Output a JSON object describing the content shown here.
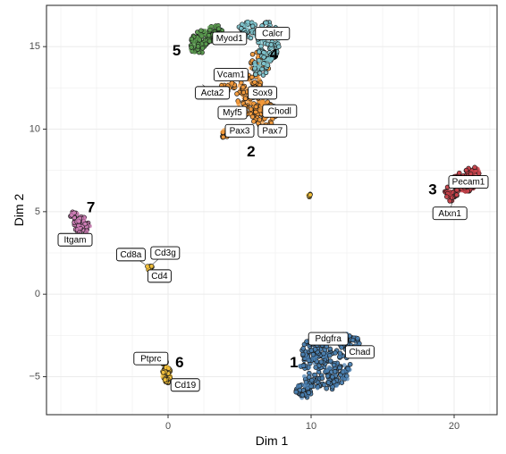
{
  "chart_data": {
    "type": "scatter",
    "xlabel": "Dim 1",
    "ylabel": "Dim 2",
    "xlim": [
      -8.5,
      23
    ],
    "ylim": [
      -7.3,
      17.5
    ],
    "x_ticks": [
      0,
      10,
      20
    ],
    "y_ticks": [
      -5,
      0,
      5,
      10,
      15
    ],
    "grid": true,
    "clusters": [
      {
        "id": "1",
        "color": "#4a7fb0",
        "label_at": [
          8.8,
          -4.2
        ],
        "blobs": [
          [
            11.0,
            -4.5,
            1.8,
            1.3,
            200
          ],
          [
            10.2,
            -3.4,
            1.0,
            0.7,
            60
          ],
          [
            12.5,
            -2.9,
            0.9,
            0.5,
            45
          ],
          [
            9.5,
            -5.8,
            0.6,
            0.5,
            40
          ]
        ]
      },
      {
        "id": "2",
        "color": "#f39a3a",
        "label_at": [
          5.8,
          8.6
        ],
        "blobs": [
          [
            5.8,
            12.0,
            1.0,
            1.3,
            120
          ],
          [
            6.8,
            10.8,
            0.9,
            0.9,
            70
          ],
          [
            4.2,
            12.6,
            0.5,
            0.3,
            18
          ],
          [
            4.0,
            9.7,
            0.3,
            0.25,
            12
          ],
          [
            6.4,
            14.0,
            0.7,
            0.8,
            35
          ]
        ]
      },
      {
        "id": "3",
        "color": "#c8414a",
        "label_at": [
          18.5,
          6.3
        ],
        "blobs": [
          [
            20.7,
            6.8,
            0.9,
            0.6,
            110
          ],
          [
            21.3,
            7.4,
            0.5,
            0.3,
            30
          ],
          [
            19.8,
            6.1,
            0.5,
            0.5,
            35
          ]
        ]
      },
      {
        "id": "4",
        "color": "#7ec3cc",
        "label_at": [
          7.4,
          14.5
        ],
        "blobs": [
          [
            7.0,
            15.3,
            0.8,
            1.2,
            110
          ],
          [
            5.6,
            16.0,
            0.7,
            0.5,
            50
          ],
          [
            6.5,
            13.7,
            0.6,
            0.5,
            30
          ],
          [
            3.5,
            15.8,
            0.4,
            0.3,
            15
          ]
        ]
      },
      {
        "id": "5",
        "color": "#5a9a4e",
        "label_at": [
          0.6,
          14.7
        ],
        "blobs": [
          [
            2.5,
            15.5,
            0.9,
            0.5,
            70
          ],
          [
            3.3,
            15.9,
            0.6,
            0.4,
            30
          ],
          [
            2.0,
            14.9,
            0.5,
            0.4,
            25
          ]
        ]
      },
      {
        "id": "6",
        "color": "#f3c13a",
        "label_at": [
          0.8,
          -4.2
        ],
        "blobs": [
          [
            -0.1,
            -4.9,
            0.3,
            0.5,
            75
          ],
          [
            -0.3,
            -4.1,
            0.2,
            0.2,
            15
          ]
        ]
      },
      {
        "id": "7",
        "color": "#cf7eb6",
        "label_at": [
          -5.4,
          5.2
        ],
        "blobs": [
          [
            -6.0,
            4.2,
            0.6,
            0.5,
            60
          ],
          [
            -6.6,
            4.8,
            0.3,
            0.2,
            15
          ]
        ]
      },
      {
        "id": "",
        "color": "#f3c13a",
        "label_at": null,
        "blobs": [
          [
            -1.3,
            1.6,
            0.2,
            0.15,
            14
          ],
          [
            9.9,
            6.0,
            0.12,
            0.15,
            5
          ]
        ]
      }
    ],
    "gene_labels": [
      {
        "text": "Myod1",
        "anchor": [
          3.0,
          15.2
        ],
        "x": 4.3,
        "y": 15.5
      },
      {
        "text": "Calcr",
        "anchor": [
          6.5,
          15.6
        ],
        "x": 7.3,
        "y": 15.8
      },
      {
        "text": "Vcam1",
        "anchor": [
          4.7,
          13.2
        ],
        "x": 4.4,
        "y": 13.3
      },
      {
        "text": "Acta2",
        "anchor": [
          2.4,
          12.7
        ],
        "x": 3.1,
        "y": 12.2
      },
      {
        "text": "Sox9",
        "anchor": [
          5.7,
          12.3
        ],
        "x": 6.6,
        "y": 12.2
      },
      {
        "text": "Myf5",
        "anchor": [
          5.4,
          11.0
        ],
        "x": 4.5,
        "y": 11.0
      },
      {
        "text": "Chodl",
        "anchor": [
          6.8,
          11.2
        ],
        "x": 7.8,
        "y": 11.1
      },
      {
        "text": "Pax3",
        "anchor": [
          4.1,
          9.8
        ],
        "x": 5.0,
        "y": 9.9
      },
      {
        "text": "Pax7",
        "anchor": [
          6.5,
          9.9
        ],
        "x": 7.3,
        "y": 9.9
      },
      {
        "text": "Pecam1",
        "anchor": [
          20.5,
          7.0
        ],
        "x": 21.0,
        "y": 6.8
      },
      {
        "text": "Atxn1",
        "anchor": [
          20.0,
          6.2
        ],
        "x": 19.7,
        "y": 4.9
      },
      {
        "text": "Itgam",
        "anchor": [
          -6.0,
          4.0
        ],
        "x": -6.5,
        "y": 3.3
      },
      {
        "text": "Cd8a",
        "anchor": [
          -1.6,
          1.8
        ],
        "x": -2.6,
        "y": 2.4
      },
      {
        "text": "Cd3g",
        "anchor": [
          -1.1,
          1.8
        ],
        "x": -0.2,
        "y": 2.5
      },
      {
        "text": "Cd4",
        "anchor": [
          -1.2,
          1.4
        ],
        "x": -0.6,
        "y": 1.1
      },
      {
        "text": "Ptprc",
        "anchor": [
          -0.1,
          -4.1
        ],
        "x": -1.2,
        "y": -3.9
      },
      {
        "text": "Cd19",
        "anchor": [
          0.0,
          -5.2
        ],
        "x": 1.2,
        "y": -5.5
      },
      {
        "text": "Pdgfra",
        "anchor": [
          10.8,
          -2.9
        ],
        "x": 11.2,
        "y": -2.7
      },
      {
        "text": "Chad",
        "anchor": [
          12.7,
          -3.1
        ],
        "x": 13.4,
        "y": -3.5
      }
    ]
  }
}
